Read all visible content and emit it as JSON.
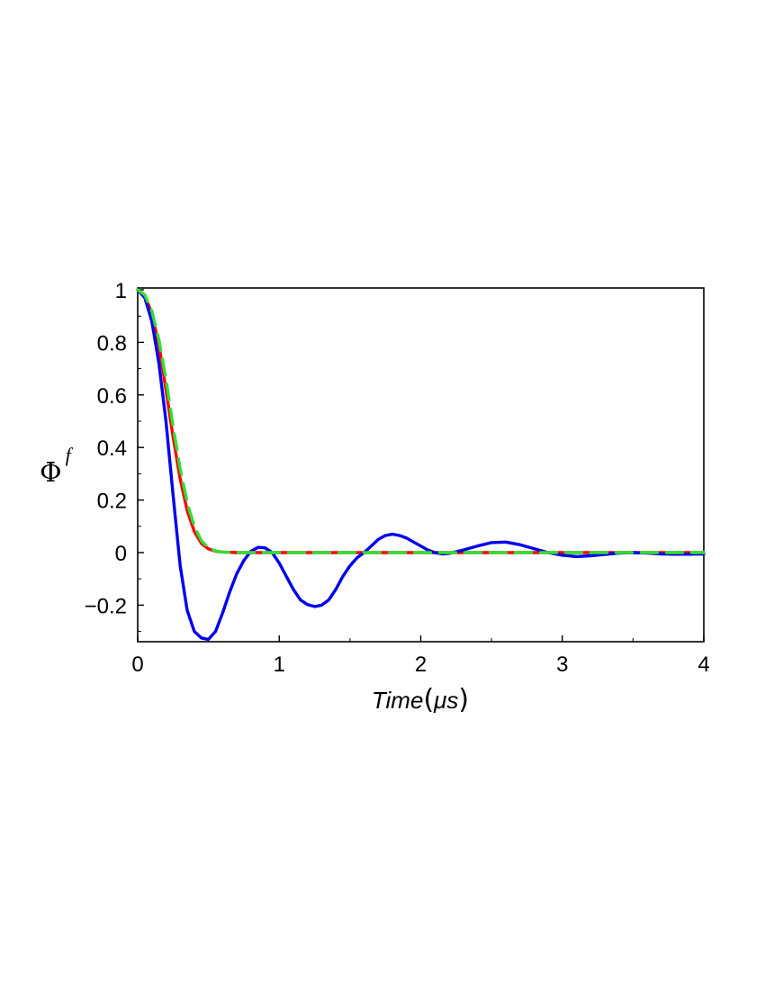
{
  "chart_data": {
    "type": "line",
    "xlabel": {
      "text": "Time",
      "open_paren": "(",
      "unit": "μs",
      "close_paren": ")"
    },
    "ylabel": {
      "symbol": "Φ",
      "superscript": "f"
    },
    "xlim": [
      0,
      4
    ],
    "ylim": [
      -0.34,
      1
    ],
    "x_ticks": [
      {
        "value": 0,
        "label": "0"
      },
      {
        "value": 1,
        "label": "1"
      },
      {
        "value": 2,
        "label": "2"
      },
      {
        "value": 3,
        "label": "3"
      },
      {
        "value": 4,
        "label": "4"
      }
    ],
    "y_ticks": [
      {
        "value": 1,
        "label": "1"
      },
      {
        "value": 0.8,
        "label": "0.8"
      },
      {
        "value": 0.6,
        "label": "0.6"
      },
      {
        "value": 0.4,
        "label": "0.4"
      },
      {
        "value": 0.2,
        "label": "0.2"
      },
      {
        "value": 0,
        "label": "0"
      },
      {
        "value": -0.2,
        "label": "−0.2"
      }
    ],
    "grid": false,
    "legend": "none",
    "series": [
      {
        "color": "#ff0000",
        "style": "solid",
        "x": [
          0,
          0.05,
          0.1,
          0.15,
          0.2,
          0.25,
          0.3,
          0.35,
          0.4,
          0.45,
          0.5,
          0.55,
          0.6,
          0.65,
          0.7,
          0.8,
          1.0,
          1.5,
          2.0,
          2.5,
          3.0,
          3.5,
          4.0
        ],
        "y": [
          1,
          0.98,
          0.91,
          0.79,
          0.62,
          0.44,
          0.28,
          0.16,
          0.08,
          0.035,
          0.014,
          0.005,
          0.002,
          0.001,
          0.0,
          0.0,
          0.0,
          0.0,
          0.0,
          0.0,
          0.0,
          0.0,
          0.0
        ]
      },
      {
        "color": "#0000ee",
        "style": "solid",
        "x": [
          0,
          0.05,
          0.1,
          0.15,
          0.2,
          0.25,
          0.3,
          0.35,
          0.4,
          0.45,
          0.5,
          0.55,
          0.6,
          0.65,
          0.7,
          0.75,
          0.8,
          0.85,
          0.9,
          0.95,
          1.0,
          1.05,
          1.1,
          1.15,
          1.2,
          1.25,
          1.3,
          1.35,
          1.4,
          1.45,
          1.5,
          1.55,
          1.6,
          1.65,
          1.7,
          1.75,
          1.8,
          1.85,
          1.9,
          1.95,
          2.0,
          2.05,
          2.1,
          2.15,
          2.2,
          2.3,
          2.4,
          2.5,
          2.6,
          2.7,
          2.8,
          2.9,
          3.0,
          3.1,
          3.2,
          3.3,
          3.4,
          3.5,
          3.6,
          3.7,
          3.8,
          3.9,
          4.0
        ],
        "y": [
          1,
          0.97,
          0.88,
          0.72,
          0.5,
          0.22,
          -0.05,
          -0.22,
          -0.3,
          -0.325,
          -0.33,
          -0.3,
          -0.23,
          -0.15,
          -0.08,
          -0.03,
          0.005,
          0.02,
          0.018,
          0.0,
          -0.04,
          -0.09,
          -0.14,
          -0.18,
          -0.198,
          -0.205,
          -0.2,
          -0.18,
          -0.14,
          -0.09,
          -0.05,
          -0.02,
          0.0,
          0.025,
          0.05,
          0.065,
          0.07,
          0.065,
          0.055,
          0.04,
          0.025,
          0.01,
          0.0,
          -0.005,
          -0.003,
          0.01,
          0.025,
          0.038,
          0.04,
          0.03,
          0.015,
          0.0,
          -0.01,
          -0.015,
          -0.012,
          -0.007,
          -0.002,
          0.0,
          -0.002,
          -0.005,
          -0.006,
          -0.006,
          -0.005
        ]
      },
      {
        "color": "#33dd33",
        "style": "dashed",
        "x": [
          0,
          0.05,
          0.1,
          0.15,
          0.2,
          0.25,
          0.3,
          0.35,
          0.4,
          0.45,
          0.5,
          0.55,
          0.6,
          0.65,
          0.7,
          0.8,
          1.0,
          1.5,
          2.0,
          2.5,
          3.0,
          3.5,
          4.0
        ],
        "y": [
          1,
          0.98,
          0.92,
          0.81,
          0.66,
          0.48,
          0.32,
          0.19,
          0.1,
          0.045,
          0.018,
          0.006,
          0.002,
          0.001,
          0.0,
          0.0,
          0.0,
          0.0,
          0.0,
          0.0,
          0.0,
          0.0,
          0.0
        ]
      }
    ]
  }
}
